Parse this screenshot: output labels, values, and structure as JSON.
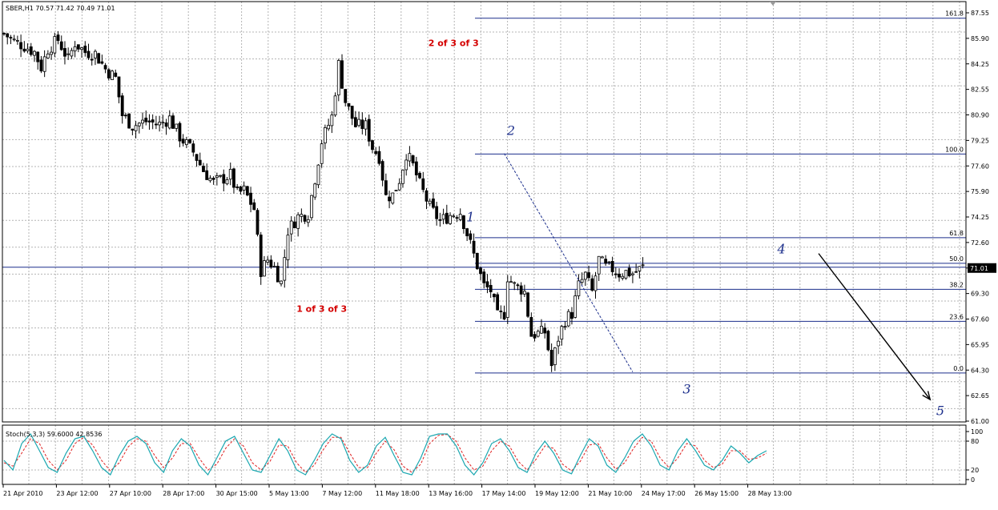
{
  "chart_data": {
    "type": "candlestick",
    "title": "SBER,H1  70.57 71.42 70.49 71.01",
    "symbol": "SBER,H1",
    "ohlc_readout": "70.57 71.42 70.49 71.01",
    "last_price_label": "71.01",
    "ylim": [
      61.0,
      87.55
    ],
    "y_ticks": [
      "87.55",
      "85.90",
      "84.25",
      "82.55",
      "80.90",
      "79.25",
      "77.60",
      "75.90",
      "74.25",
      "72.60",
      "71.01",
      "69.30",
      "67.60",
      "65.95",
      "64.30",
      "62.65",
      "61.00"
    ],
    "x_ticks": [
      "21 Apr 2010",
      "23 Apr 12:00",
      "27 Apr 10:00",
      "28 Apr 17:00",
      "30 Apr 15:00",
      "5 May 13:00",
      "7 May 12:00",
      "11 May 18:00",
      "13 May 16:00",
      "17 May 14:00",
      "19 May 12:00",
      "21 May 10:00",
      "24 May 17:00",
      "26 May 15:00",
      "28 May 13:00"
    ],
    "grid": true,
    "candle_count": 190,
    "price_path": [
      [
        0,
        86.2
      ],
      [
        3,
        85.7
      ],
      [
        6,
        85.4
      ],
      [
        9,
        85.0
      ],
      [
        11,
        84.0
      ],
      [
        13,
        85.2
      ],
      [
        16,
        85.8
      ],
      [
        19,
        84.5
      ],
      [
        21,
        85.6
      ],
      [
        24,
        85.0
      ],
      [
        27,
        84.9
      ],
      [
        30,
        83.9
      ],
      [
        33,
        83.3
      ],
      [
        35,
        80.9
      ],
      [
        38,
        80.2
      ],
      [
        42,
        80.5
      ],
      [
        46,
        80.3
      ],
      [
        49,
        80.7
      ],
      [
        52,
        79.5
      ],
      [
        56,
        78.5
      ],
      [
        59,
        77.3
      ],
      [
        62,
        76.5
      ],
      [
        65,
        76.8
      ],
      [
        67,
        77.0
      ],
      [
        69,
        75.8
      ],
      [
        71,
        76.0
      ],
      [
        74,
        74.8
      ],
      [
        76,
        70.8
      ],
      [
        78,
        71.5
      ],
      [
        80,
        71.0
      ],
      [
        82,
        70.0
      ],
      [
        84,
        73.4
      ],
      [
        87,
        74.3
      ],
      [
        90,
        74.5
      ],
      [
        92,
        76.8
      ],
      [
        94,
        79.2
      ],
      [
        97,
        80.8
      ],
      [
        99,
        84.2
      ],
      [
        101,
        81.8
      ],
      [
        104,
        80.2
      ],
      [
        107,
        80.2
      ],
      [
        109,
        78.8
      ],
      [
        111,
        78.2
      ],
      [
        113,
        75.6
      ],
      [
        115,
        75.7
      ],
      [
        117,
        76.7
      ],
      [
        119,
        78.4
      ],
      [
        121,
        77.6
      ],
      [
        123,
        76.4
      ],
      [
        126,
        74.9
      ],
      [
        129,
        74.0
      ],
      [
        132,
        74.4
      ],
      [
        135,
        74.6
      ],
      [
        137,
        73.2
      ],
      [
        139,
        71.8
      ],
      [
        142,
        69.8
      ],
      [
        144,
        69.5
      ],
      [
        146,
        67.8
      ],
      [
        148,
        68.0
      ],
      [
        149,
        70.4
      ],
      [
        151,
        69.8
      ],
      [
        153,
        69.6
      ],
      [
        154,
        69.4
      ],
      [
        156,
        66.6
      ],
      [
        158,
        66.7
      ],
      [
        160,
        66.8
      ],
      [
        162,
        64.6
      ],
      [
        164,
        66.4
      ],
      [
        166,
        67.6
      ],
      [
        168,
        68.0
      ],
      [
        170,
        69.8
      ],
      [
        172,
        70.5
      ],
      [
        174,
        69.4
      ],
      [
        176,
        71.5
      ],
      [
        178,
        71.0
      ],
      [
        180,
        70.9
      ],
      [
        182,
        70.6
      ],
      [
        184,
        70.7
      ],
      [
        186,
        70.6
      ],
      [
        189,
        71.0
      ]
    ],
    "fibonacci": {
      "levels": [
        {
          "label": "161.8",
          "price": 87.2
        },
        {
          "label": "100.0",
          "price": 78.37
        },
        {
          "label": "61.8",
          "price": 72.93
        },
        {
          "label": "50.0",
          "price": 71.26
        },
        {
          "label": "38.2",
          "price": 69.57
        },
        {
          "label": "23.6",
          "price": 67.49
        },
        {
          "label": "0.0",
          "price": 64.13
        }
      ]
    },
    "wave_labels": [
      {
        "text": "1",
        "candle": 138,
        "price": 74.0
      },
      {
        "text": "2",
        "candle": 150,
        "price": 79.6
      },
      {
        "text": "3",
        "candle": 202,
        "price": 62.8
      },
      {
        "text": "4",
        "candle": 230,
        "price": 71.9
      },
      {
        "text": "5",
        "candle": 277,
        "price": 61.4
      }
    ],
    "annotations": [
      {
        "text": "2 of 3 of 3",
        "candle": 133,
        "price": 85.4
      },
      {
        "text": "1 of 3 of 3",
        "candle": 94,
        "price": 68.1
      }
    ],
    "projection_arrow": {
      "from": {
        "candle": 241,
        "price": 71.9
      },
      "to": {
        "candle": 274,
        "price": 62.4
      }
    },
    "stochastic": {
      "label": "Stoch(5,3,3) 59.6000 42.8536",
      "ylim": [
        0,
        100
      ],
      "y_ticks": [
        "100",
        "80",
        "20",
        "0"
      ],
      "levels": [
        80,
        20
      ],
      "main_line": [
        40,
        20,
        75,
        95,
        60,
        25,
        15,
        55,
        85,
        90,
        60,
        25,
        10,
        50,
        80,
        90,
        75,
        35,
        15,
        60,
        85,
        70,
        30,
        10,
        45,
        80,
        90,
        55,
        20,
        15,
        50,
        85,
        60,
        20,
        10,
        40,
        75,
        95,
        85,
        40,
        15,
        30,
        70,
        88,
        50,
        15,
        10,
        45,
        90,
        95,
        95,
        70,
        30,
        10,
        35,
        75,
        85,
        60,
        25,
        15,
        55,
        80,
        55,
        20,
        12,
        50,
        85,
        70,
        30,
        15,
        45,
        80,
        95,
        70,
        30,
        20,
        60,
        85,
        60,
        30,
        20,
        40,
        70,
        55,
        35,
        50,
        60
      ],
      "signal_line": [
        35,
        28,
        55,
        85,
        75,
        40,
        20,
        40,
        75,
        88,
        72,
        40,
        18,
        35,
        68,
        85,
        80,
        50,
        25,
        45,
        75,
        75,
        45,
        20,
        32,
        65,
        85,
        70,
        35,
        20,
        38,
        72,
        70,
        35,
        15,
        30,
        62,
        88,
        88,
        55,
        25,
        25,
        55,
        80,
        62,
        28,
        15,
        32,
        75,
        92,
        94,
        80,
        45,
        20,
        28,
        60,
        80,
        70,
        38,
        20,
        42,
        70,
        65,
        32,
        18,
        38,
        72,
        75,
        45,
        22,
        35,
        65,
        88,
        80,
        45,
        25,
        45,
        75,
        70,
        40,
        25,
        32,
        60,
        60,
        42,
        45,
        55
      ]
    }
  }
}
